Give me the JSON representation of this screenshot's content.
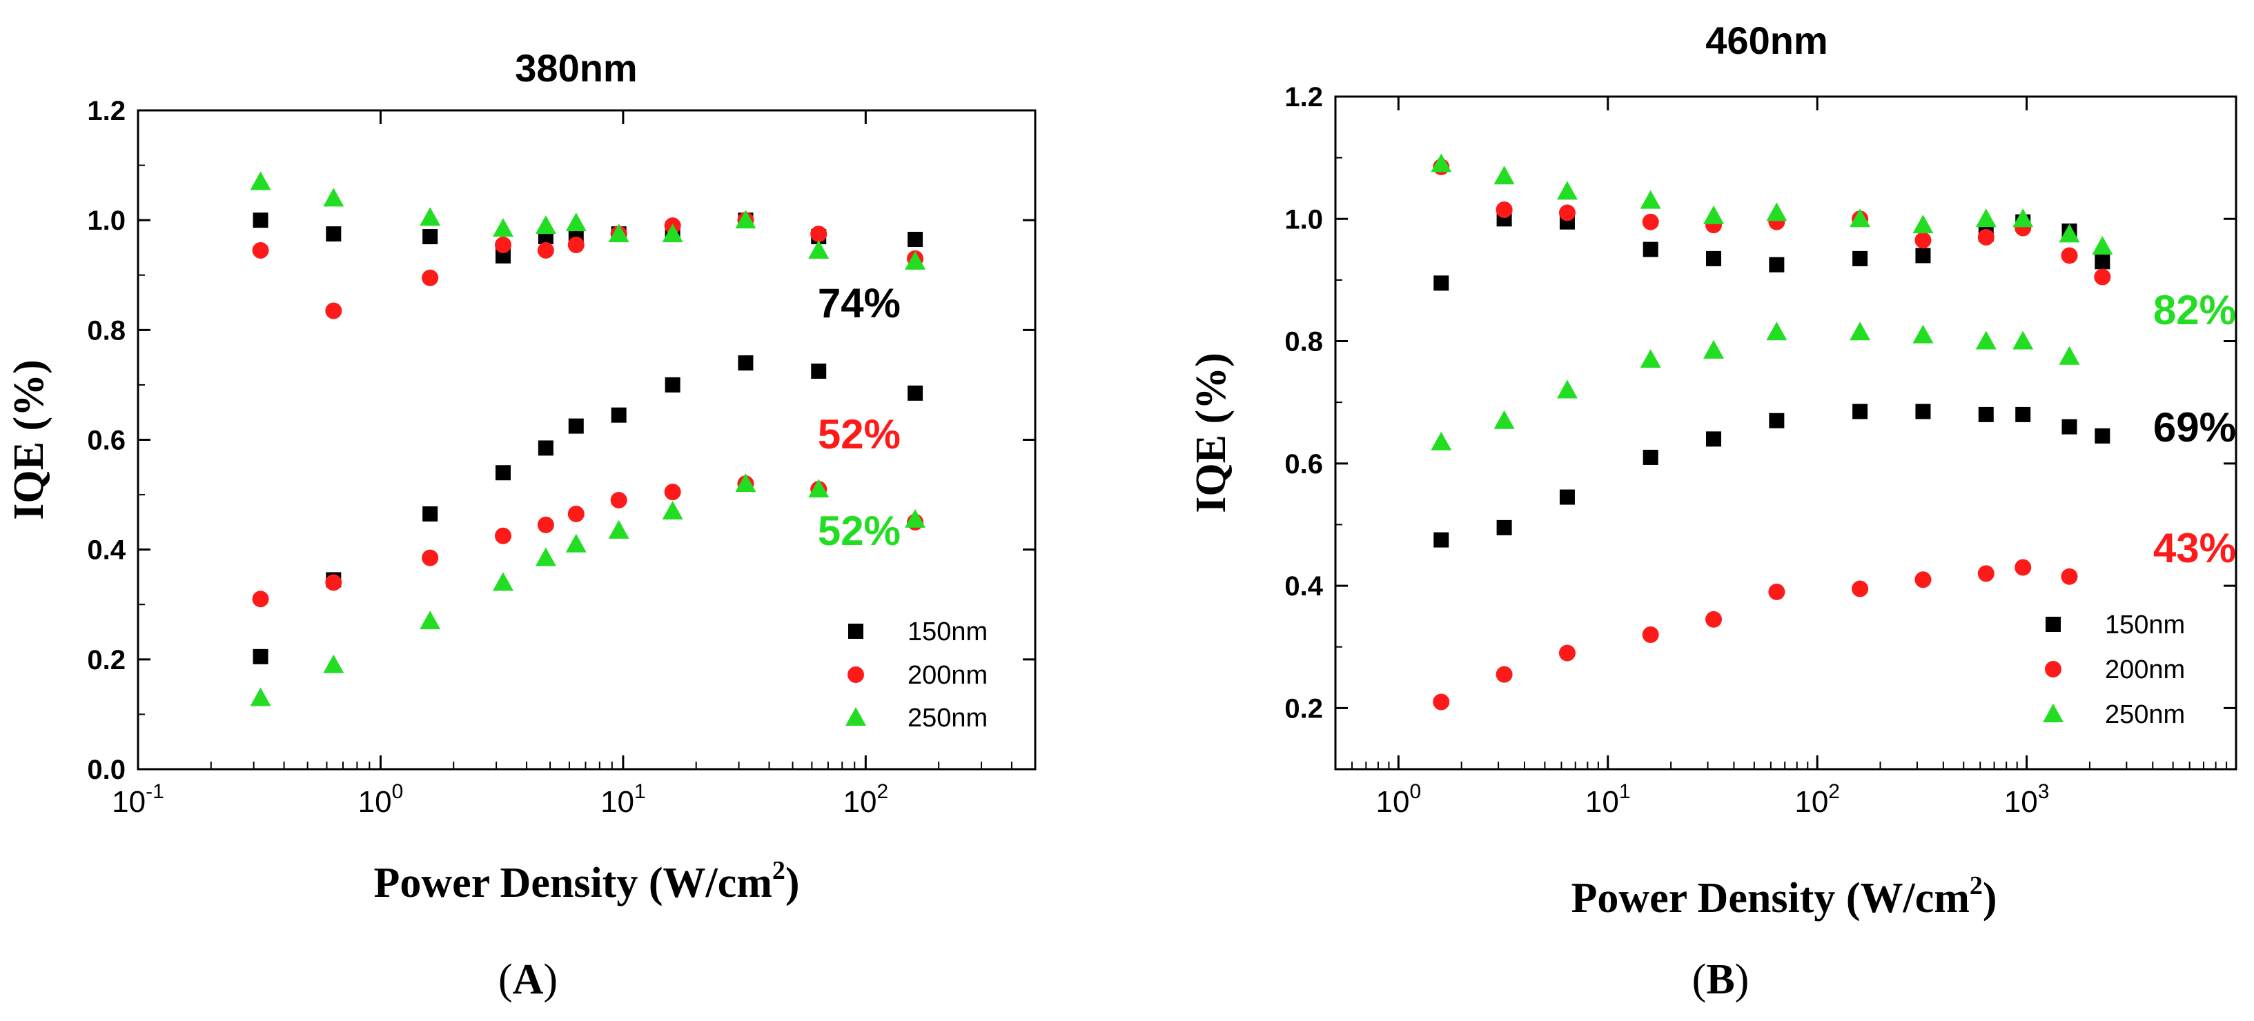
{
  "colors": {
    "150nm": "#000000",
    "200nm": "#ff1a1a",
    "250nm": "#22dd22"
  },
  "chart_data": [
    {
      "type": "scatter",
      "panel_label": "A",
      "title": "380nm",
      "xlabel": "Power Density (W/cm",
      "xlabel_sup": "2",
      "xlabel_close": ")",
      "ylabel": "IQE (%)",
      "xscale": "log",
      "xlim": [
        0.1,
        500
      ],
      "ylim": [
        0,
        1.2
      ],
      "xticks": [
        {
          "value": 0.1,
          "base": "10",
          "exp": "-1"
        },
        {
          "value": 1,
          "base": "10",
          "exp": "0"
        },
        {
          "value": 10,
          "base": "10",
          "exp": "1"
        },
        {
          "value": 100,
          "base": "10",
          "exp": "2"
        }
      ],
      "yticks": [
        "0.0",
        "0.2",
        "0.4",
        "0.6",
        "0.8",
        "1.0",
        "1.2"
      ],
      "legend": {
        "position": "bottom-right",
        "entries": [
          "150nm",
          "200nm",
          "250nm"
        ]
      },
      "series": [
        {
          "name": "150nm",
          "marker": "square",
          "x": [
            0.32,
            0.64,
            1.6,
            3.2,
            4.8,
            6.4,
            9.6,
            16,
            32,
            64,
            160
          ],
          "values": [
            1.0,
            0.975,
            0.97,
            0.935,
            0.97,
            0.97,
            0.975,
            0.975,
            1.0,
            0.97,
            0.965
          ]
        },
        {
          "name": "200nm",
          "marker": "circle",
          "x": [
            0.32,
            0.64,
            1.6,
            3.2,
            4.8,
            6.4,
            9.6,
            16,
            32,
            64,
            160
          ],
          "values": [
            0.945,
            0.835,
            0.895,
            0.955,
            0.945,
            0.955,
            0.975,
            0.99,
            1.0,
            0.975,
            0.93
          ]
        },
        {
          "name": "250nm",
          "marker": "triangle",
          "x": [
            0.32,
            0.64,
            1.6,
            3.2,
            4.8,
            6.4,
            9.6,
            16,
            32,
            64,
            160
          ],
          "values": [
            1.07,
            1.04,
            1.005,
            0.985,
            0.99,
            0.995,
            0.975,
            0.975,
            1.0,
            0.945,
            0.925
          ]
        },
        {
          "name": "150nm",
          "marker": "square",
          "x": [
            0.32,
            0.64,
            1.6,
            3.2,
            4.8,
            6.4,
            9.6,
            16,
            32,
            64,
            160
          ],
          "values": [
            0.205,
            0.345,
            0.465,
            0.54,
            0.585,
            0.625,
            0.645,
            0.7,
            0.74,
            0.725,
            0.685
          ]
        },
        {
          "name": "200nm",
          "marker": "circle",
          "x": [
            0.32,
            0.64,
            1.6,
            3.2,
            4.8,
            6.4,
            9.6,
            16,
            32,
            64,
            160
          ],
          "values": [
            0.31,
            0.34,
            0.385,
            0.425,
            0.445,
            0.465,
            0.49,
            0.505,
            0.52,
            0.51,
            0.45
          ]
        },
        {
          "name": "250nm",
          "marker": "triangle",
          "x": [
            0.32,
            0.64,
            1.6,
            3.2,
            4.8,
            6.4,
            9.6,
            16,
            32,
            64,
            160
          ],
          "values": [
            0.13,
            0.19,
            0.27,
            0.34,
            0.385,
            0.41,
            0.435,
            0.47,
            0.52,
            0.51,
            0.455
          ]
        }
      ],
      "annotations": [
        {
          "text": "74%",
          "series": "150nm"
        },
        {
          "text": "52%",
          "series": "200nm"
        },
        {
          "text": "52%",
          "series": "250nm"
        }
      ]
    },
    {
      "type": "scatter",
      "panel_label": "B",
      "title": "460nm",
      "xlabel": "Power Density (W/cm",
      "xlabel_sup": "2",
      "xlabel_close": ")",
      "ylabel": "IQE (%)",
      "xscale": "log",
      "xlim": [
        0.5,
        10000
      ],
      "ylim": [
        0.1,
        1.2
      ],
      "xticks": [
        {
          "value": 1,
          "base": "10",
          "exp": "0"
        },
        {
          "value": 10,
          "base": "10",
          "exp": "1"
        },
        {
          "value": 100,
          "base": "10",
          "exp": "2"
        },
        {
          "value": 1000,
          "base": "10",
          "exp": "3"
        }
      ],
      "yticks": [
        "0.2",
        "0.4",
        "0.6",
        "0.8",
        "1.0",
        "1.2"
      ],
      "legend": {
        "position": "bottom-right",
        "entries": [
          "150nm",
          "200nm",
          "250nm"
        ]
      },
      "series": [
        {
          "name": "150nm",
          "marker": "square",
          "x": [
            1.6,
            3.2,
            6.4,
            16,
            32,
            64,
            160,
            320,
            640,
            960,
            1600,
            2300
          ],
          "values": [
            0.895,
            1.0,
            0.995,
            0.95,
            0.935,
            0.925,
            0.935,
            0.94,
            0.975,
            0.995,
            0.98,
            0.93
          ]
        },
        {
          "name": "200nm",
          "marker": "circle",
          "x": [
            1.6,
            3.2,
            6.4,
            16,
            32,
            64,
            160,
            320,
            640,
            960,
            1600,
            2300
          ],
          "values": [
            1.085,
            1.015,
            1.01,
            0.995,
            0.99,
            0.995,
            1.0,
            0.965,
            0.97,
            0.985,
            0.94,
            0.905
          ]
        },
        {
          "name": "250nm",
          "marker": "triangle",
          "x": [
            1.6,
            3.2,
            6.4,
            16,
            32,
            64,
            160,
            320,
            640,
            960,
            1600,
            2300
          ],
          "values": [
            1.09,
            1.07,
            1.045,
            1.03,
            1.005,
            1.01,
            1.0,
            0.99,
            1.0,
            1.0,
            0.975,
            0.955
          ]
        },
        {
          "name": "150nm",
          "marker": "square",
          "x": [
            1.6,
            3.2,
            6.4,
            16,
            32,
            64,
            160,
            320,
            640,
            960,
            1600,
            2300
          ],
          "values": [
            0.475,
            0.495,
            0.545,
            0.61,
            0.64,
            0.67,
            0.685,
            0.685,
            0.68,
            0.68,
            0.66,
            0.645
          ]
        },
        {
          "name": "200nm",
          "marker": "circle",
          "x": [
            1.6,
            3.2,
            6.4,
            16,
            32,
            64,
            160,
            320,
            640,
            960,
            1600
          ],
          "values": [
            0.21,
            0.255,
            0.29,
            0.32,
            0.345,
            0.39,
            0.395,
            0.41,
            0.42,
            0.43,
            0.415
          ]
        },
        {
          "name": "250nm",
          "marker": "triangle",
          "x": [
            1.6,
            3.2,
            6.4,
            16,
            32,
            64,
            160,
            320,
            640,
            960,
            1600
          ],
          "values": [
            0.635,
            0.67,
            0.72,
            0.77,
            0.785,
            0.815,
            0.815,
            0.81,
            0.8,
            0.8,
            0.775
          ]
        }
      ],
      "annotations": [
        {
          "text": "82%",
          "series": "250nm"
        },
        {
          "text": "69%",
          "series": "150nm"
        },
        {
          "text": "43%",
          "series": "200nm"
        }
      ]
    }
  ]
}
